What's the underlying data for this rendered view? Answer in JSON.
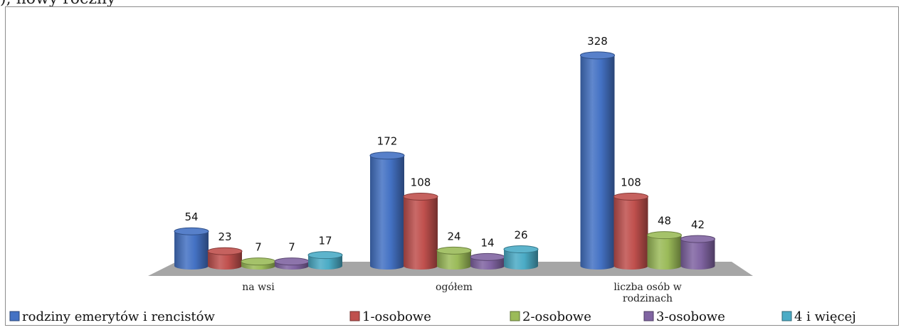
{
  "top_fragment": "), nowy roczny",
  "chart_data": {
    "type": "bar",
    "style": "3d-cylinder",
    "categories": [
      "na wsi",
      "ogółem",
      "liczba osób w rodzinach"
    ],
    "category_label_lines": [
      [
        "na wsi"
      ],
      [
        "ogółem"
      ],
      [
        "liczba osób w",
        "rodzinach"
      ]
    ],
    "series": [
      {
        "name": "rodziny emerytów i rencistów",
        "color": "#4472C4",
        "values": [
          54,
          172,
          328
        ]
      },
      {
        "name": "1-osobowe",
        "color": "#C0504D",
        "values": [
          23,
          108,
          108
        ]
      },
      {
        "name": "2-osobowe",
        "color": "#9BBB59",
        "values": [
          7,
          24,
          48
        ]
      },
      {
        "name": "3-osobowe",
        "color": "#8064A2",
        "values": [
          7,
          14,
          42
        ]
      },
      {
        "name": "4 i więcej",
        "color": "#4BACC6",
        "values": [
          17,
          26,
          null
        ]
      }
    ],
    "ylim": [
      0,
      340
    ],
    "grid": false,
    "legend_position": "bottom",
    "floor_color": "#a6a6a6"
  }
}
